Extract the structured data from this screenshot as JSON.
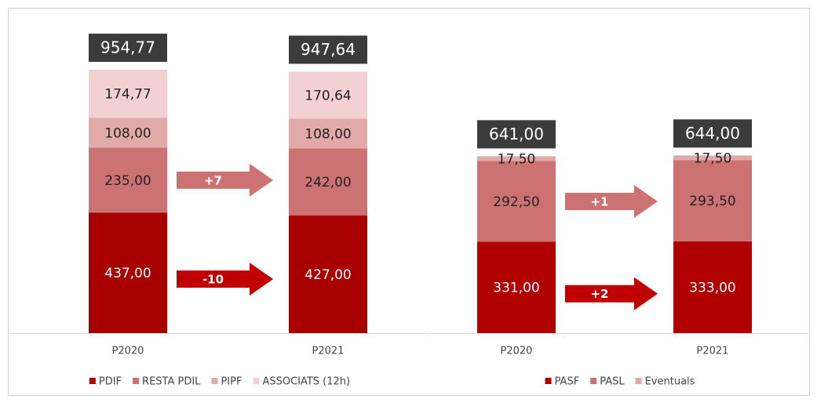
{
  "chart_data": [
    {
      "type": "stacked-bar",
      "categories": [
        "P2020",
        "P2021"
      ],
      "ylim": [
        0,
        1000
      ],
      "series": [
        {
          "name": "PDIF",
          "color": "#a80000",
          "values": [
            437,
            427
          ],
          "value_labels": [
            "437,00",
            "427,00"
          ]
        },
        {
          "name": "RESTA PDIL",
          "color": "#cd7272",
          "values": [
            235,
            242
          ],
          "value_labels": [
            "235,00",
            "242,00"
          ]
        },
        {
          "name": "PIPF",
          "color": "#e2a9a9",
          "values": [
            108,
            108
          ],
          "value_labels": [
            "108,00",
            "108,00"
          ]
        },
        {
          "name": "ASSOCIATS (12h)",
          "color": "#f3d1d3",
          "values": [
            174.77,
            170.64
          ],
          "value_labels": [
            "174,77",
            "170,64"
          ]
        }
      ],
      "totals": [
        954.77,
        947.64
      ],
      "total_labels": [
        "954,77",
        "947,64"
      ],
      "arrows": [
        {
          "text": "-10",
          "color": "#c00000"
        },
        {
          "text": "+7",
          "color": "#cd7272"
        }
      ]
    },
    {
      "type": "stacked-bar",
      "categories": [
        "P2020",
        "P2021"
      ],
      "ylim": [
        0,
        1000
      ],
      "series": [
        {
          "name": "PASF",
          "color": "#b00000",
          "values": [
            331,
            333
          ],
          "value_labels": [
            "331,00",
            "333,00"
          ]
        },
        {
          "name": "PASL",
          "color": "#cd7272",
          "values": [
            292.5,
            293.5
          ],
          "value_labels": [
            "292,50",
            "293,50"
          ]
        },
        {
          "name": "Eventuals",
          "color": "#e2a9a9",
          "values": [
            17.5,
            17.5
          ],
          "value_labels": [
            "17,50",
            "17,50"
          ]
        }
      ],
      "totals": [
        641,
        644
      ],
      "total_labels": [
        "641,00",
        "644,00"
      ],
      "arrows": [
        {
          "text": "+2",
          "color": "#c00000"
        },
        {
          "text": "+1",
          "color": "#cd7272"
        }
      ]
    }
  ]
}
